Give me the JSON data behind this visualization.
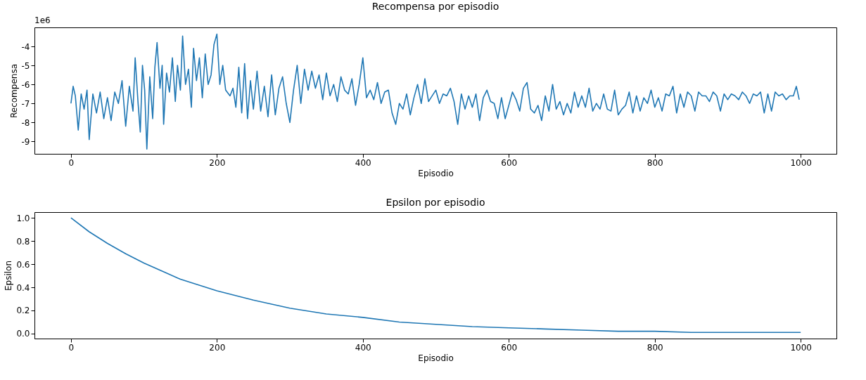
{
  "chart_data": [
    {
      "type": "line",
      "title": "Recompensa por episodio",
      "xlabel": "Episodio",
      "ylabel": "Recompensa",
      "annotations": [
        "1e6"
      ],
      "grid": false,
      "xlim": [
        -50,
        1049
      ],
      "xticks": [
        0,
        200,
        400,
        600,
        800,
        1000
      ],
      "ylim": [
        -9.65,
        -3.0
      ],
      "yticks": [
        -9,
        -8,
        -7,
        -6,
        -5,
        -4
      ],
      "x": [
        0,
        3,
        6,
        10,
        14,
        18,
        22,
        25,
        30,
        35,
        40,
        45,
        50,
        55,
        60,
        65,
        70,
        75,
        80,
        85,
        88,
        92,
        95,
        98,
        101,
        104,
        108,
        112,
        115,
        118,
        122,
        125,
        127,
        131,
        135,
        139,
        143,
        146,
        150,
        153,
        157,
        161,
        165,
        168,
        172,
        176,
        180,
        184,
        188,
        192,
        196,
        200,
        204,
        208,
        212,
        218,
        222,
        226,
        230,
        234,
        238,
        242,
        246,
        250,
        255,
        260,
        265,
        270,
        275,
        280,
        285,
        290,
        295,
        300,
        305,
        310,
        315,
        320,
        325,
        330,
        335,
        340,
        345,
        350,
        355,
        360,
        365,
        370,
        375,
        380,
        385,
        390,
        395,
        400,
        405,
        410,
        415,
        420,
        425,
        430,
        435,
        440,
        445,
        450,
        455,
        460,
        465,
        470,
        475,
        480,
        485,
        490,
        495,
        500,
        505,
        510,
        515,
        520,
        525,
        530,
        535,
        540,
        545,
        550,
        555,
        560,
        565,
        570,
        575,
        580,
        585,
        590,
        595,
        600,
        605,
        610,
        615,
        620,
        625,
        630,
        635,
        640,
        645,
        650,
        655,
        660,
        665,
        670,
        675,
        680,
        685,
        690,
        695,
        700,
        705,
        710,
        715,
        720,
        725,
        730,
        735,
        740,
        745,
        750,
        755,
        760,
        765,
        770,
        775,
        780,
        785,
        790,
        795,
        800,
        805,
        810,
        815,
        820,
        825,
        830,
        835,
        840,
        845,
        850,
        855,
        860,
        865,
        870,
        875,
        880,
        885,
        890,
        895,
        900,
        905,
        910,
        915,
        920,
        925,
        930,
        935,
        940,
        945,
        950,
        955,
        960,
        965,
        970,
        975,
        980,
        985,
        990,
        994,
        998
      ],
      "series": [
        {
          "color": "#1f77b4",
          "values": [
            -7.0,
            -6.1,
            -6.6,
            -8.4,
            -6.5,
            -7.3,
            -6.3,
            -8.9,
            -6.5,
            -7.5,
            -6.4,
            -7.8,
            -6.7,
            -7.9,
            -6.4,
            -7.0,
            -5.8,
            -8.2,
            -6.1,
            -7.4,
            -4.6,
            -7.0,
            -8.5,
            -5.0,
            -6.3,
            -9.4,
            -5.6,
            -7.8,
            -5.1,
            -3.8,
            -6.2,
            -5.0,
            -8.1,
            -5.4,
            -6.4,
            -4.6,
            -6.9,
            -5.0,
            -6.3,
            -3.45,
            -6.0,
            -5.2,
            -7.2,
            -4.1,
            -5.8,
            -4.6,
            -6.7,
            -4.4,
            -6.0,
            -5.5,
            -3.9,
            -3.35,
            -6.0,
            -5.0,
            -6.3,
            -6.6,
            -6.2,
            -7.2,
            -5.1,
            -7.5,
            -4.9,
            -7.8,
            -5.8,
            -7.3,
            -5.3,
            -7.4,
            -6.1,
            -7.7,
            -5.5,
            -7.6,
            -6.2,
            -5.6,
            -7.0,
            -8.0,
            -6.3,
            -5.0,
            -7.0,
            -5.2,
            -6.3,
            -5.3,
            -6.2,
            -5.5,
            -6.8,
            -5.4,
            -6.6,
            -6.0,
            -6.9,
            -5.6,
            -6.3,
            -6.5,
            -5.7,
            -7.1,
            -6.0,
            -4.6,
            -6.7,
            -6.3,
            -6.8,
            -5.9,
            -7.0,
            -6.4,
            -6.3,
            -7.5,
            -8.1,
            -7.0,
            -7.3,
            -6.5,
            -7.6,
            -6.7,
            -6.0,
            -7.0,
            -5.7,
            -6.9,
            -6.6,
            -6.3,
            -7.0,
            -6.5,
            -6.6,
            -6.2,
            -6.9,
            -8.1,
            -6.5,
            -7.3,
            -6.6,
            -7.2,
            -6.5,
            -7.9,
            -6.7,
            -6.3,
            -6.9,
            -7.0,
            -7.8,
            -6.7,
            -7.8,
            -7.1,
            -6.4,
            -6.8,
            -7.4,
            -6.2,
            -5.9,
            -7.3,
            -7.5,
            -7.1,
            -7.9,
            -6.6,
            -7.4,
            -6.0,
            -7.3,
            -6.9,
            -7.6,
            -7.0,
            -7.5,
            -6.4,
            -7.2,
            -6.6,
            -7.2,
            -6.2,
            -7.4,
            -7.0,
            -7.3,
            -6.5,
            -7.3,
            -7.4,
            -6.3,
            -7.6,
            -7.3,
            -7.1,
            -6.4,
            -7.5,
            -6.6,
            -7.4,
            -6.7,
            -7.0,
            -6.3,
            -7.2,
            -6.7,
            -7.4,
            -6.5,
            -6.6,
            -6.1,
            -7.5,
            -6.5,
            -7.2,
            -6.4,
            -6.6,
            -7.4,
            -6.4,
            -6.6,
            -6.6,
            -6.9,
            -6.4,
            -6.6,
            -7.4,
            -6.5,
            -6.8,
            -6.5,
            -6.6,
            -6.8,
            -6.4,
            -6.6,
            -7.0,
            -6.5,
            -6.6,
            -6.4,
            -7.5,
            -6.5,
            -7.4,
            -6.4,
            -6.6,
            -6.5,
            -6.8,
            -6.6,
            -6.6,
            -6.1,
            -6.8
          ]
        }
      ]
    },
    {
      "type": "line",
      "title": "Epsilon por episodio",
      "xlabel": "Episodio",
      "ylabel": "Epsilon",
      "grid": false,
      "xlim": [
        -50,
        1049
      ],
      "xticks": [
        0,
        200,
        400,
        600,
        800,
        1000
      ],
      "ylim": [
        -0.043,
        1.05
      ],
      "yticks": [
        {
          "value": 0,
          "label": "0.0"
        },
        0.2,
        0.4,
        0.6,
        0.8,
        {
          "value": 1,
          "label": "1.0"
        }
      ],
      "x": [
        0,
        25,
        50,
        75,
        100,
        125,
        150,
        175,
        200,
        250,
        300,
        350,
        400,
        450,
        500,
        550,
        600,
        650,
        700,
        750,
        800,
        850,
        900,
        950,
        1000
      ],
      "series": [
        {
          "color": "#1f77b4",
          "values": [
            1.0,
            0.88,
            0.78,
            0.69,
            0.61,
            0.54,
            0.47,
            0.42,
            0.37,
            0.29,
            0.22,
            0.17,
            0.14,
            0.1,
            0.08,
            0.06,
            0.05,
            0.04,
            0.03,
            0.02,
            0.02,
            0.01,
            0.01,
            0.01,
            0.01
          ]
        }
      ]
    }
  ]
}
